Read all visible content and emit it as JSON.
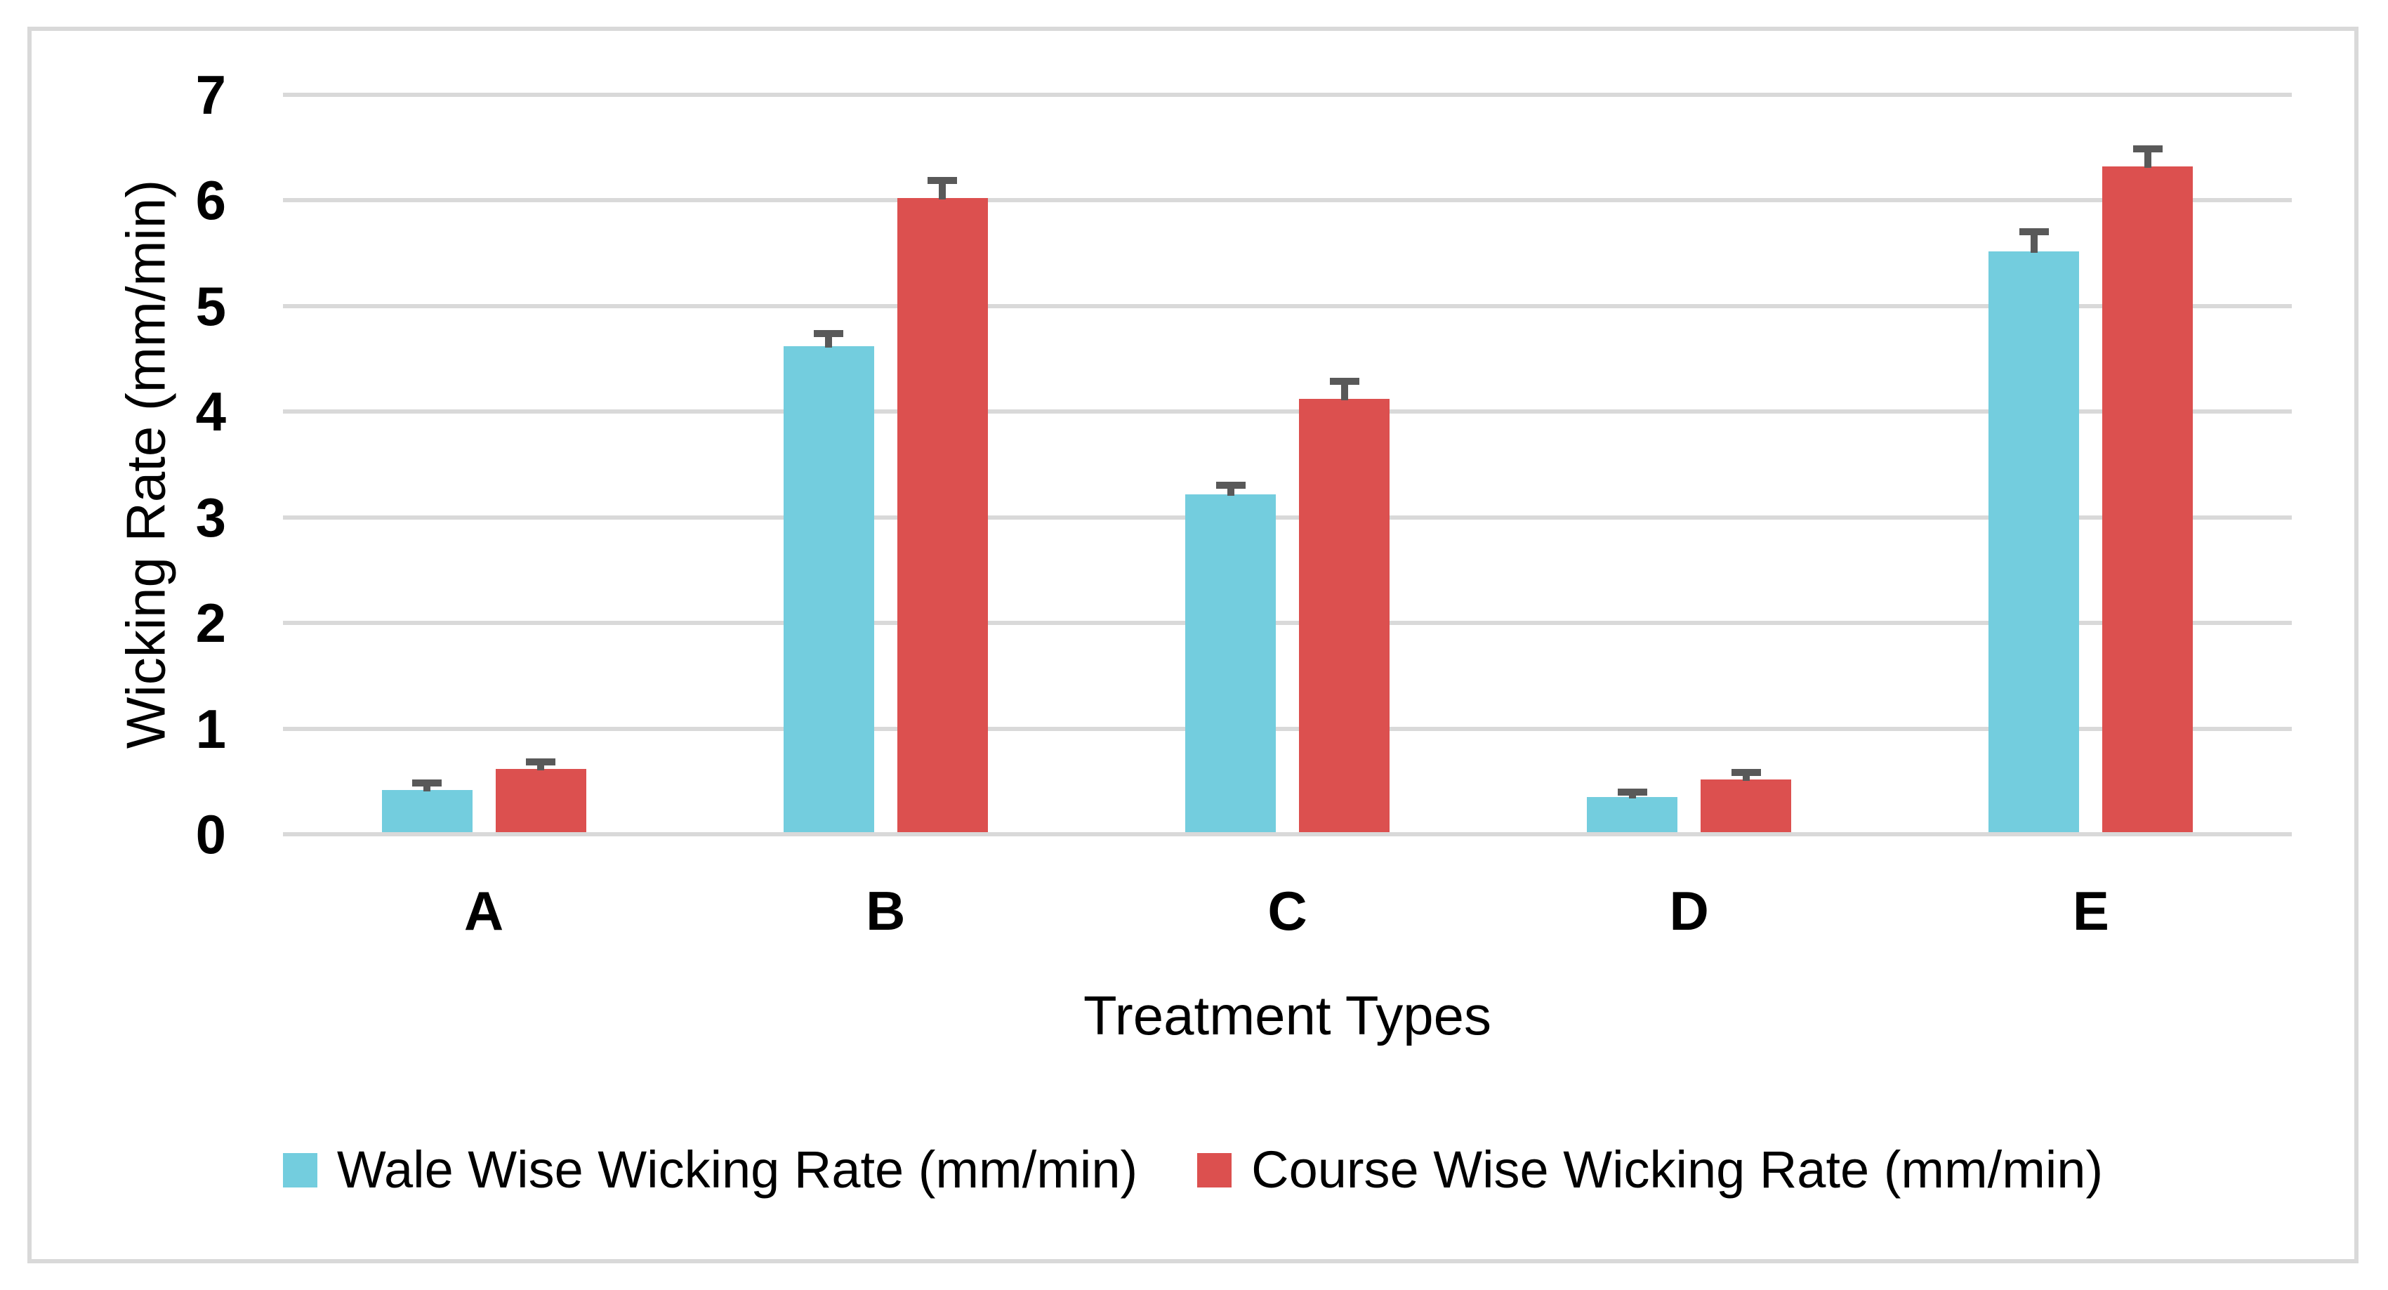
{
  "figure": {
    "background": "#FFFFFF",
    "border_color": "#D9D9D9"
  },
  "chart_data": {
    "type": "bar",
    "title": "",
    "categories": [
      "A",
      "B",
      "C",
      "D",
      "E"
    ],
    "series": [
      {
        "name": "Wale Wise Wicking Rate (mm/min)",
        "color": "#73CDDE",
        "values": [
          0.4,
          4.6,
          3.2,
          0.33,
          5.5
        ],
        "errors_plus": [
          0.1,
          0.15,
          0.12,
          0.08,
          0.22
        ]
      },
      {
        "name": "Course Wise Wicking Rate (mm/min)",
        "color": "#DC504F",
        "values": [
          0.6,
          6.0,
          4.1,
          0.5,
          6.3
        ],
        "errors_plus": [
          0.1,
          0.2,
          0.2,
          0.1,
          0.2
        ]
      }
    ],
    "xlabel": "Treatment Types",
    "ylabel": "Wicking Rate (mm/min)",
    "ylim": [
      0,
      7
    ],
    "yticks": [
      0,
      1,
      2,
      3,
      4,
      5,
      6,
      7
    ],
    "grid": "horizontal",
    "gridline_color": "#D9D9D9",
    "error_bar_color": "#595959",
    "tick_label_color": "#000000",
    "legend_position": "bottom"
  }
}
